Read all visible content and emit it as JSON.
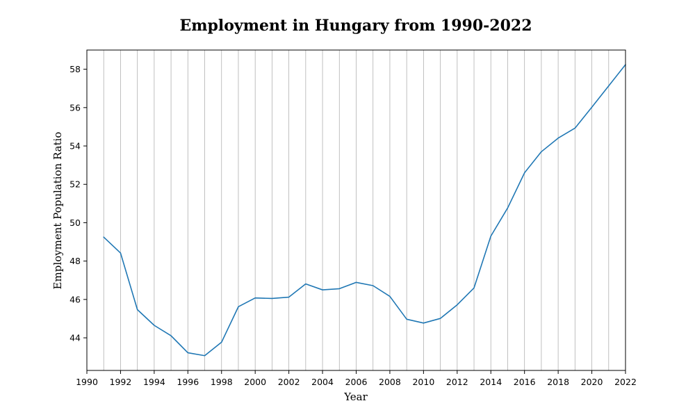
{
  "chart_data": {
    "type": "line",
    "title": "Employment in Hungary from 1990-2022",
    "xlabel": "Year",
    "ylabel": "Employment Population Ratio",
    "xlim": [
      1990,
      2022
    ],
    "ylim": [
      42.3,
      59
    ],
    "x_ticks": [
      1990,
      1992,
      1994,
      1996,
      1998,
      2000,
      2002,
      2004,
      2006,
      2008,
      2010,
      2012,
      2014,
      2016,
      2018,
      2020,
      2022
    ],
    "y_ticks": [
      44,
      46,
      48,
      50,
      52,
      54,
      56,
      58
    ],
    "grid": "vertical",
    "line_color": "#1f77b4",
    "series": [
      {
        "x": [
          1991,
          1992,
          1993,
          1994,
          1995,
          1996,
          1997,
          1998,
          1999,
          2000,
          2001,
          2002,
          2003,
          2004,
          2005,
          2006,
          2007,
          2008,
          2009,
          2010,
          2011,
          2012,
          2013,
          2014,
          2015,
          2016,
          2017,
          2018,
          2019,
          2020,
          2021,
          2022
        ],
        "y": [
          49.25,
          48.42,
          45.47,
          44.65,
          44.11,
          43.22,
          43.07,
          43.77,
          45.62,
          46.08,
          46.05,
          46.12,
          46.81,
          46.5,
          46.56,
          46.89,
          46.72,
          46.16,
          44.97,
          44.77,
          45.01,
          45.72,
          46.6,
          49.3,
          50.77,
          52.6,
          53.7,
          54.41,
          54.93,
          56.02,
          57.13,
          58.24
        ]
      }
    ]
  }
}
